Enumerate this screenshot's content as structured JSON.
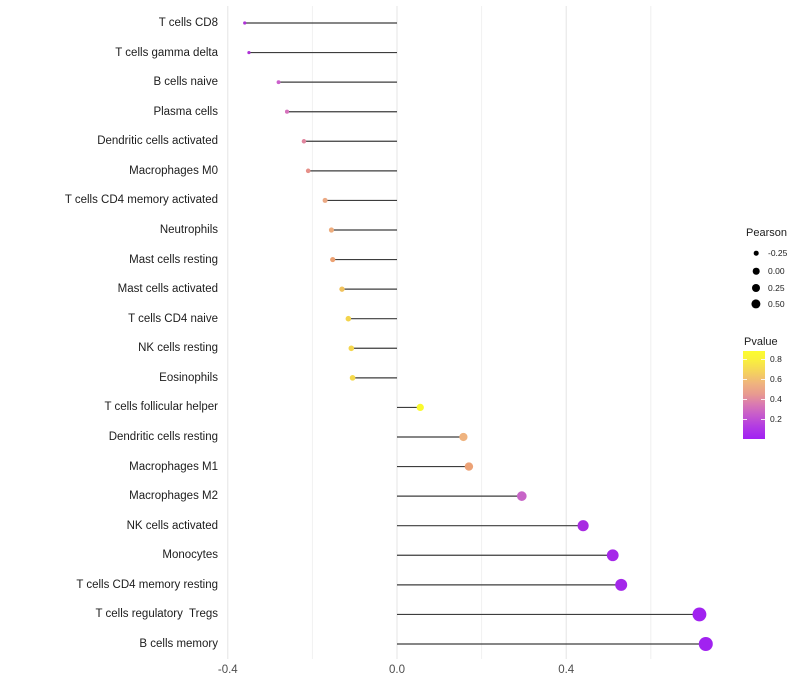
{
  "chart_data": {
    "type": "scatter",
    "style": "lollipop",
    "title": "",
    "xlabel": "",
    "ylabel": "",
    "xlim": [
      -0.445,
      0.79
    ],
    "baseline": 0,
    "grid": "vertical-only",
    "x_ticks": [
      "-0.4",
      "0.0",
      "0.4"
    ],
    "x_tick_values": [
      -0.4,
      0.0,
      0.4
    ],
    "x_minor_values": [
      -0.2,
      0.2,
      0.6
    ],
    "points": [
      {
        "label": "T cells CD8",
        "pearson": -0.36,
        "pvalue": 0.06,
        "color": "#AE32D6"
      },
      {
        "label": "T cells gamma delta",
        "pearson": -0.35,
        "pvalue": 0.06,
        "color": "#AE32D6"
      },
      {
        "label": "B cells naive",
        "pearson": -0.28,
        "pvalue": 0.25,
        "color": "#CB60CB"
      },
      {
        "label": "Plasma cells",
        "pearson": -0.26,
        "pvalue": 0.3,
        "color": "#D672BC"
      },
      {
        "label": "Dendritic cells activated",
        "pearson": -0.22,
        "pvalue": 0.36,
        "color": "#E0859E"
      },
      {
        "label": "Macrophages M0",
        "pearson": -0.21,
        "pvalue": 0.4,
        "color": "#E69089"
      },
      {
        "label": "T cells CD4 memory activated",
        "pearson": -0.17,
        "pvalue": 0.45,
        "color": "#EBA984"
      },
      {
        "label": "Neutrophils",
        "pearson": -0.155,
        "pvalue": 0.47,
        "color": "#EDAC7D"
      },
      {
        "label": "Mast cells resting",
        "pearson": -0.152,
        "pvalue": 0.48,
        "color": "#ECA172"
      },
      {
        "label": "Mast cells activated",
        "pearson": -0.13,
        "pvalue": 0.58,
        "color": "#F0C25E"
      },
      {
        "label": "T cells CD4 naive",
        "pearson": -0.115,
        "pvalue": 0.64,
        "color": "#F3D44C"
      },
      {
        "label": "NK cells resting",
        "pearson": -0.108,
        "pvalue": 0.66,
        "color": "#F4D64E"
      },
      {
        "label": "Eosinophils",
        "pearson": -0.105,
        "pvalue": 0.67,
        "color": "#F5D94D"
      },
      {
        "label": "T cells follicular helper",
        "pearson": 0.055,
        "pvalue": 0.85,
        "color": "#FAFA2D"
      },
      {
        "label": "Dendritic cells resting",
        "pearson": 0.157,
        "pvalue": 0.48,
        "color": "#EFB37F"
      },
      {
        "label": "Macrophages M1",
        "pearson": 0.17,
        "pvalue": 0.46,
        "color": "#ECA276"
      },
      {
        "label": "Macrophages M2",
        "pearson": 0.295,
        "pvalue": 0.25,
        "color": "#C764C7"
      },
      {
        "label": "NK cells activated",
        "pearson": 0.44,
        "pvalue": 0.05,
        "color": "#A82BE2"
      },
      {
        "label": "Monocytes",
        "pearson": 0.51,
        "pvalue": 0.04,
        "color": "#A527E9"
      },
      {
        "label": "T cells CD4 memory resting",
        "pearson": 0.53,
        "pvalue": 0.04,
        "color": "#A428EA"
      },
      {
        "label": "T cells regulatory  Tregs",
        "pearson": 0.715,
        "pvalue": 0.02,
        "color": "#A122F0"
      },
      {
        "label": "B cells memory",
        "pearson": 0.73,
        "pvalue": 0.02,
        "color": "#A122F0"
      }
    ],
    "legend_size": {
      "title": "Pearson",
      "labels": [
        "-0.25",
        "0.00",
        "0.25",
        "0.50"
      ],
      "values": [
        -0.25,
        0.0,
        0.25,
        0.5
      ],
      "key_color": "#000000"
    },
    "legend_color": {
      "title": "Pvalue",
      "tick_labels": [
        "0.8",
        "0.6",
        "0.4",
        "0.2"
      ],
      "tick_values": [
        0.8,
        0.6,
        0.4,
        0.2
      ],
      "range": [
        0.0,
        0.875
      ],
      "gradient_bottom_to_top": [
        "#A121F3",
        "#B23BE3",
        "#C95FC9",
        "#DA7BB0",
        "#E89A90",
        "#EFB37E",
        "#F5D45B",
        "#FAF23B",
        "#FCFC30"
      ]
    },
    "colors": {
      "stem": "#3d3d3d",
      "grid_major": "#e4e4e4",
      "grid_minor": "#f0f0f0",
      "axis_text": "#4d4d4d",
      "label_text": "#1c1c1c",
      "background": "#ffffff"
    }
  }
}
